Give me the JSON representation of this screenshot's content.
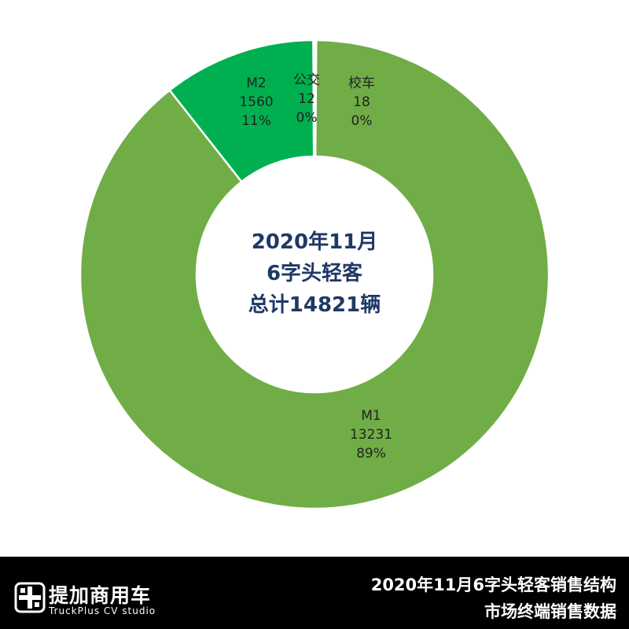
{
  "chart_data": {
    "type": "pie",
    "donut": true,
    "center_lines": [
      "2020年11月",
      "6字头轻客",
      "总计14821辆"
    ],
    "slices": [
      {
        "label": "校车",
        "value": 18,
        "percent": "0%",
        "color": "#70ad47"
      },
      {
        "label": "M1",
        "value": 13231,
        "percent": "89%",
        "color": "#70ad47"
      },
      {
        "label": "M2",
        "value": 1560,
        "percent": "11%",
        "color": "#00b050"
      },
      {
        "label": "公交",
        "value": 12,
        "percent": "0%",
        "color": "#00b050"
      }
    ]
  },
  "footer": {
    "brand_cn": "提加商用车",
    "brand_en": "TruckPlus CV studio",
    "title": "2020年11月6字头轻客销售结构",
    "subtitle": "市场终端销售数据"
  },
  "colors": {
    "footer_bg": "#000000",
    "center_text": "#1f3864",
    "separator": "#ffffff"
  }
}
